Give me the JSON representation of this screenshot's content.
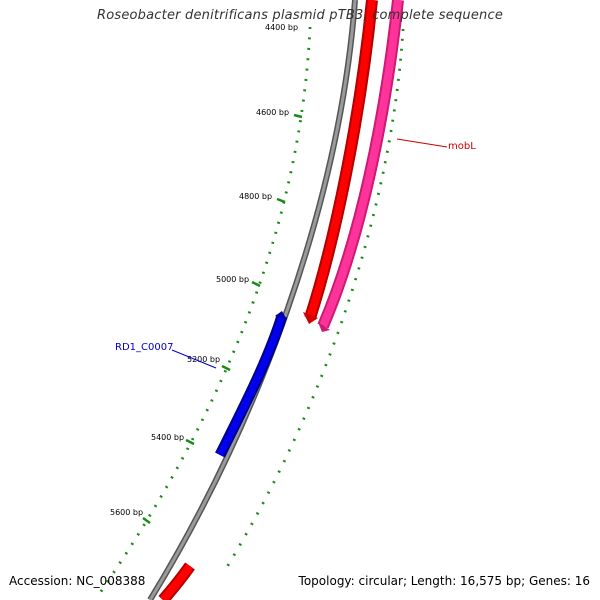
{
  "title": "Roseobacter denitrificans plasmid pTB3, complete sequence",
  "footer": {
    "accession": "Accession: NC_008388",
    "summary": "Topology: circular; Length: 16,575 bp; Genes: 16"
  },
  "ticks": [
    {
      "label": "4400 bp"
    },
    {
      "label": "4600 bp"
    },
    {
      "label": "4800 bp"
    },
    {
      "label": "5000 bp"
    },
    {
      "label": "5200 bp"
    },
    {
      "label": "5400 bp"
    },
    {
      "label": "5600 bp"
    }
  ],
  "genes": [
    {
      "name": "mobL",
      "color": "#ff0000",
      "label_color": "#cc0000"
    },
    {
      "name": "RD1_C0007",
      "color": "#0000dd",
      "label_color": "#0000cc"
    }
  ],
  "colors": {
    "backbone": "#888888",
    "tick": "#1a8a1a",
    "forward_strand": "#ff0000",
    "pink_track": "#ff3399"
  }
}
